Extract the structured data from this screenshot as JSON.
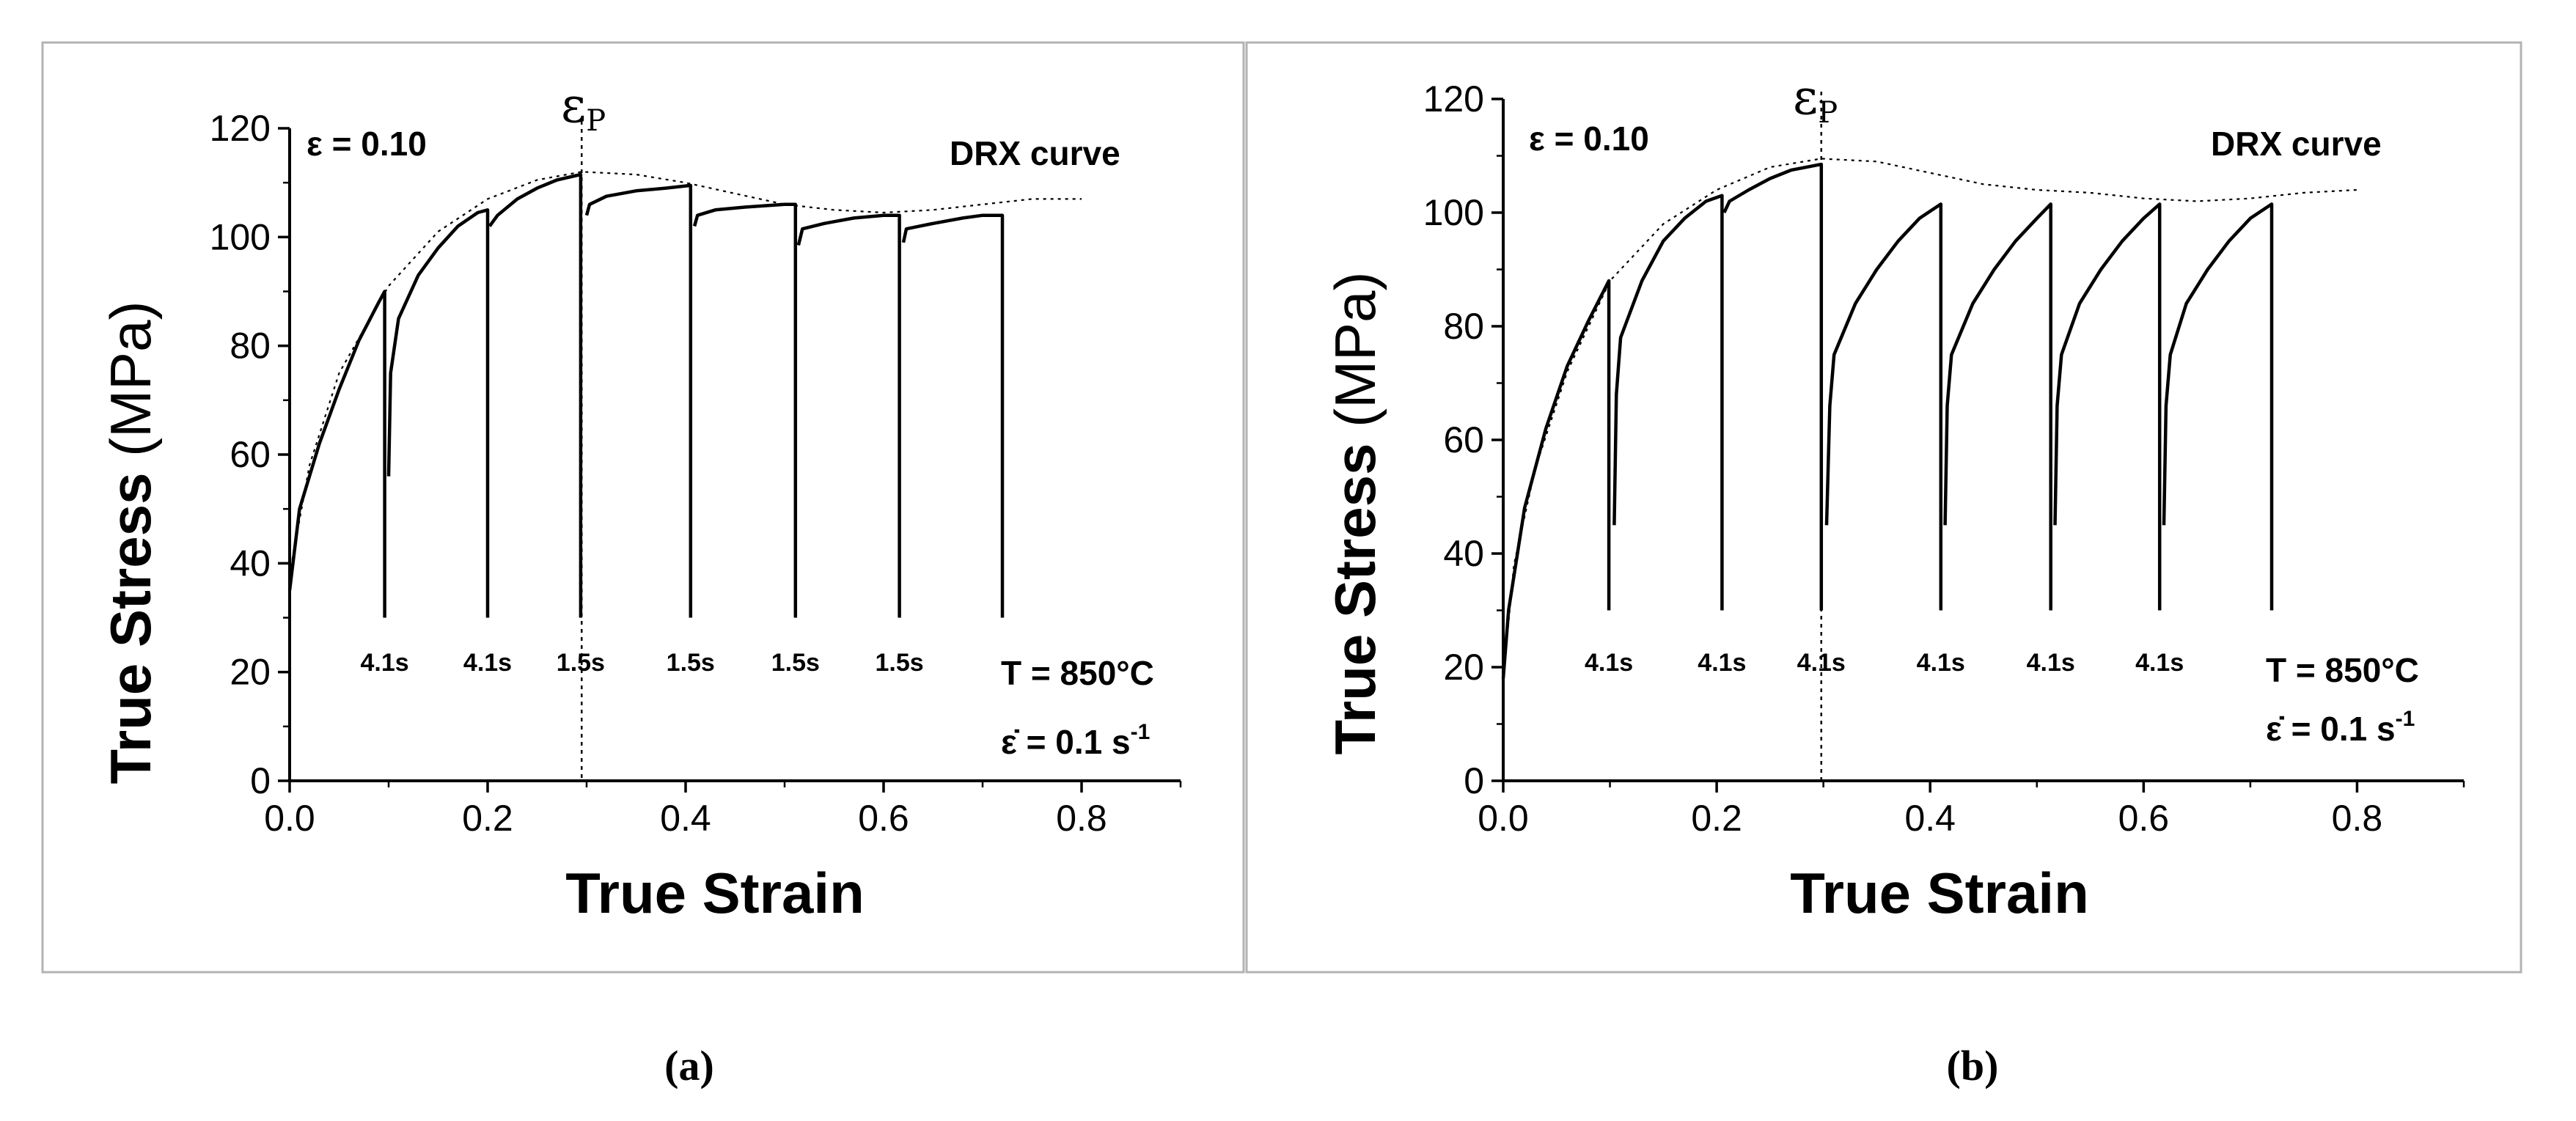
{
  "chart_data": [
    {
      "type": "line",
      "panel_label": "(a)",
      "xlabel": "True Strain",
      "ylabel": "True Stress",
      "ylabel_unit": " (MPa)",
      "xlim": [
        0,
        0.9
      ],
      "ylim": [
        0,
        120
      ],
      "x_ticks": [
        "0.0",
        "0.2",
        "0.4",
        "0.6",
        "0.8"
      ],
      "x_tick_values": [
        0,
        0.2,
        0.4,
        0.6,
        0.8
      ],
      "y_ticks": [
        "0",
        "20",
        "40",
        "60",
        "80",
        "100",
        "120"
      ],
      "y_tick_values": [
        0,
        20,
        40,
        60,
        80,
        100,
        120
      ],
      "grid": false,
      "strain_label": "ε = 0.10",
      "peak_label": "ε",
      "peak_label_sub": "P",
      "peak_strain": 0.295,
      "drx_label": "DRX curve",
      "temperature_label": "T = 850°C",
      "rate_label": "ε̇ = 0.1 s",
      "rate_label_sup": "-1",
      "hold_times": [
        "4.1s",
        "4.1s",
        "1.5s",
        "1.5s",
        "1.5s",
        "1.5s"
      ],
      "drx_curve": [
        [
          0,
          38
        ],
        [
          0.02,
          58
        ],
        [
          0.05,
          75
        ],
        [
          0.1,
          91
        ],
        [
          0.15,
          101
        ],
        [
          0.2,
          107
        ],
        [
          0.25,
          110.5
        ],
        [
          0.295,
          112
        ],
        [
          0.35,
          111.5
        ],
        [
          0.4,
          110
        ],
        [
          0.45,
          108
        ],
        [
          0.5,
          106
        ],
        [
          0.55,
          105
        ],
        [
          0.6,
          104.5
        ],
        [
          0.65,
          105
        ],
        [
          0.7,
          106
        ],
        [
          0.75,
          107
        ],
        [
          0.8,
          107
        ]
      ],
      "series": [
        {
          "points": [
            [
              0,
              35
            ],
            [
              0.01,
              50
            ],
            [
              0.03,
              62
            ],
            [
              0.05,
              72
            ],
            [
              0.07,
              81
            ],
            [
              0.09,
              88
            ],
            [
              0.096,
              90
            ],
            [
              0.096,
              30
            ]
          ]
        },
        {
          "points": [
            [
              0.1,
              56
            ],
            [
              0.102,
              75
            ],
            [
              0.11,
              85
            ],
            [
              0.13,
              93
            ],
            [
              0.15,
              98
            ],
            [
              0.17,
              102
            ],
            [
              0.19,
              104.5
            ],
            [
              0.2,
              105
            ],
            [
              0.2,
              30
            ]
          ]
        },
        {
          "points": [
            [
              0.202,
              102
            ],
            [
              0.21,
              104
            ],
            [
              0.23,
              107
            ],
            [
              0.25,
              109
            ],
            [
              0.27,
              110.5
            ],
            [
              0.294,
              111.5
            ],
            [
              0.294,
              30
            ]
          ]
        },
        {
          "points": [
            [
              0.3,
              104
            ],
            [
              0.303,
              106
            ],
            [
              0.32,
              107.5
            ],
            [
              0.35,
              108.5
            ],
            [
              0.38,
              109
            ],
            [
              0.405,
              109.5
            ],
            [
              0.405,
              30
            ]
          ]
        },
        {
          "points": [
            [
              0.409,
              102
            ],
            [
              0.412,
              104
            ],
            [
              0.43,
              105
            ],
            [
              0.46,
              105.5
            ],
            [
              0.5,
              106
            ],
            [
              0.511,
              106
            ],
            [
              0.511,
              30
            ]
          ]
        },
        {
          "points": [
            [
              0.514,
              98.5
            ],
            [
              0.518,
              101.5
            ],
            [
              0.54,
              102.5
            ],
            [
              0.57,
              103.5
            ],
            [
              0.6,
              104
            ],
            [
              0.616,
              104
            ],
            [
              0.616,
              30
            ]
          ]
        },
        {
          "points": [
            [
              0.62,
              99
            ],
            [
              0.623,
              101.5
            ],
            [
              0.65,
              102.5
            ],
            [
              0.68,
              103.5
            ],
            [
              0.7,
              104
            ],
            [
              0.72,
              104
            ],
            [
              0.72,
              30
            ]
          ]
        }
      ]
    },
    {
      "type": "line",
      "panel_label": "(b)",
      "xlabel": "True Strain",
      "ylabel": "True Stress",
      "ylabel_unit": " (MPa)",
      "xlim": [
        0,
        0.9
      ],
      "ylim": [
        0,
        120
      ],
      "x_ticks": [
        "0.0",
        "0.2",
        "0.4",
        "0.6",
        "0.8"
      ],
      "x_tick_values": [
        0,
        0.2,
        0.4,
        0.6,
        0.8
      ],
      "y_ticks": [
        "0",
        "20",
        "40",
        "60",
        "80",
        "100",
        "120"
      ],
      "y_tick_values": [
        0,
        20,
        40,
        60,
        80,
        100,
        120
      ],
      "grid": false,
      "strain_label": "ε = 0.10",
      "peak_label": "ε",
      "peak_label_sub": "P",
      "peak_strain": 0.298,
      "drx_label": "DRX curve",
      "temperature_label": "T = 850°C",
      "rate_label": "ε̇ = 0.1 s",
      "rate_label_sup": "-1",
      "hold_times": [
        "4.1s",
        "4.1s",
        "4.1s",
        "4.1s",
        "4.1s",
        "4.1s"
      ],
      "drx_curve": [
        [
          0,
          18
        ],
        [
          0.01,
          38
        ],
        [
          0.03,
          55
        ],
        [
          0.06,
          72
        ],
        [
          0.1,
          88
        ],
        [
          0.15,
          98
        ],
        [
          0.2,
          104
        ],
        [
          0.25,
          108
        ],
        [
          0.298,
          109.5
        ],
        [
          0.35,
          109
        ],
        [
          0.4,
          107
        ],
        [
          0.45,
          105
        ],
        [
          0.5,
          104
        ],
        [
          0.55,
          103.5
        ],
        [
          0.6,
          102.5
        ],
        [
          0.65,
          102
        ],
        [
          0.7,
          102.5
        ],
        [
          0.75,
          103.5
        ],
        [
          0.8,
          104
        ]
      ],
      "series": [
        {
          "points": [
            [
              0,
              18
            ],
            [
              0.005,
              30
            ],
            [
              0.02,
              48
            ],
            [
              0.04,
              62
            ],
            [
              0.06,
              73
            ],
            [
              0.08,
              81
            ],
            [
              0.099,
              88
            ],
            [
              0.099,
              30
            ]
          ]
        },
        {
          "points": [
            [
              0.104,
              45
            ],
            [
              0.106,
              68
            ],
            [
              0.11,
              78
            ],
            [
              0.13,
              88
            ],
            [
              0.15,
              95
            ],
            [
              0.17,
              99
            ],
            [
              0.19,
              102
            ],
            [
              0.205,
              103
            ],
            [
              0.205,
              30
            ]
          ]
        },
        {
          "points": [
            [
              0.207,
              100
            ],
            [
              0.212,
              102
            ],
            [
              0.23,
              104
            ],
            [
              0.25,
              106
            ],
            [
              0.27,
              107.5
            ],
            [
              0.298,
              108.5
            ],
            [
              0.298,
              30
            ]
          ]
        },
        {
          "points": [
            [
              0.303,
              45
            ],
            [
              0.306,
              66
            ],
            [
              0.31,
              75
            ],
            [
              0.33,
              84
            ],
            [
              0.35,
              90
            ],
            [
              0.37,
              95
            ],
            [
              0.39,
              99
            ],
            [
              0.41,
              101.5
            ],
            [
              0.41,
              30
            ]
          ]
        },
        {
          "points": [
            [
              0.414,
              45
            ],
            [
              0.416,
              66
            ],
            [
              0.42,
              75
            ],
            [
              0.44,
              84
            ],
            [
              0.46,
              90
            ],
            [
              0.48,
              95
            ],
            [
              0.5,
              99
            ],
            [
              0.513,
              101.5
            ],
            [
              0.513,
              30
            ]
          ]
        },
        {
          "points": [
            [
              0.517,
              45
            ],
            [
              0.519,
              66
            ],
            [
              0.523,
              75
            ],
            [
              0.54,
              84
            ],
            [
              0.56,
              90
            ],
            [
              0.58,
              95
            ],
            [
              0.6,
              99
            ],
            [
              0.615,
              101.5
            ],
            [
              0.615,
              30
            ]
          ]
        },
        {
          "points": [
            [
              0.619,
              45
            ],
            [
              0.621,
              66
            ],
            [
              0.625,
              75
            ],
            [
              0.64,
              84
            ],
            [
              0.66,
              90
            ],
            [
              0.68,
              95
            ],
            [
              0.7,
              99
            ],
            [
              0.72,
              101.5
            ],
            [
              0.72,
              30
            ]
          ]
        }
      ]
    }
  ]
}
